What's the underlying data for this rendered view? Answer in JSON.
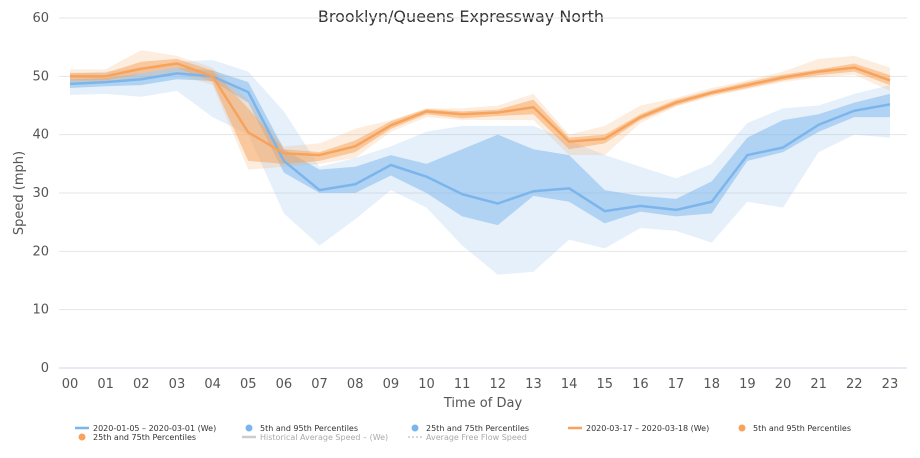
{
  "chart_data": {
    "type": "line",
    "title": "Brooklyn/Queens Expressway North",
    "xlabel": "Time of Day",
    "ylabel": "Speed (mph)",
    "ylim": [
      0,
      60
    ],
    "yticks": [
      0,
      10,
      20,
      30,
      40,
      50,
      60
    ],
    "categories": [
      "00",
      "01",
      "02",
      "03",
      "04",
      "05",
      "06",
      "07",
      "08",
      "09",
      "10",
      "11",
      "12",
      "13",
      "14",
      "15",
      "16",
      "17",
      "18",
      "19",
      "20",
      "21",
      "22",
      "23"
    ],
    "grid": true,
    "legend_position": "bottom",
    "series": [
      {
        "name": "2020-01-05 – 2020-03-01 (We)",
        "color": "#7cb5ec",
        "values": [
          48.7,
          49.0,
          49.5,
          50.5,
          50.0,
          47.3,
          35.5,
          30.5,
          31.5,
          34.8,
          32.8,
          29.8,
          28.2,
          30.3,
          30.8,
          26.9,
          27.8,
          27.1,
          28.5,
          36.5,
          37.8,
          41.7,
          44.1,
          45.2
        ],
        "p25": [
          48.0,
          48.3,
          48.5,
          49.5,
          49.2,
          45.5,
          33.5,
          30.0,
          30.0,
          33.0,
          30.0,
          26.0,
          24.5,
          29.5,
          28.5,
          24.8,
          26.8,
          26.0,
          26.5,
          35.5,
          37.0,
          40.5,
          43.0,
          43.0
        ],
        "p75": [
          49.5,
          49.7,
          50.5,
          51.5,
          51.0,
          49.0,
          37.5,
          34.0,
          34.5,
          36.5,
          35.0,
          37.5,
          40.0,
          37.5,
          36.5,
          30.5,
          29.5,
          29.0,
          32.0,
          39.5,
          42.5,
          43.5,
          45.5,
          47.0
        ],
        "p5": [
          46.8,
          47.0,
          46.5,
          47.5,
          43.0,
          40.0,
          26.5,
          21.0,
          25.5,
          30.5,
          27.5,
          21.0,
          16.0,
          16.5,
          22.0,
          20.5,
          24.0,
          23.5,
          21.5,
          28.5,
          27.5,
          37.0,
          40.0,
          39.5
        ],
        "p95": [
          50.5,
          50.8,
          51.5,
          52.5,
          52.8,
          50.8,
          44.0,
          34.5,
          36.0,
          38.0,
          40.5,
          41.5,
          41.5,
          41.5,
          39.0,
          36.5,
          34.5,
          32.5,
          35.0,
          42.0,
          44.5,
          45.0,
          47.0,
          48.5
        ]
      },
      {
        "name": "2020-03-17 – 2020-03-18 (We)",
        "color": "#f7a35c",
        "values": [
          50.0,
          50.0,
          51.3,
          52.2,
          50.0,
          40.4,
          36.8,
          36.5,
          38.0,
          41.6,
          44.0,
          43.5,
          43.8,
          44.7,
          38.8,
          39.3,
          43.0,
          45.5,
          47.2,
          48.5,
          49.8,
          50.8,
          51.5,
          49.3
        ],
        "p25": [
          49.3,
          49.3,
          50.5,
          51.5,
          49.0,
          35.5,
          35.0,
          35.5,
          37.0,
          41.0,
          43.5,
          42.8,
          43.2,
          43.5,
          37.5,
          38.5,
          42.5,
          45.0,
          46.8,
          48.0,
          49.3,
          50.2,
          50.8,
          48.5
        ],
        "p75": [
          50.6,
          50.6,
          52.5,
          53.0,
          51.0,
          44.5,
          37.5,
          37.0,
          39.0,
          42.3,
          44.4,
          44.0,
          44.3,
          46.0,
          39.5,
          40.0,
          43.5,
          46.0,
          47.6,
          49.0,
          50.3,
          51.2,
          52.2,
          50.2
        ],
        "p5": [
          48.8,
          48.8,
          49.5,
          50.5,
          48.5,
          34.0,
          34.5,
          35.0,
          36.0,
          40.5,
          43.0,
          42.5,
          42.5,
          42.5,
          36.5,
          36.5,
          42.0,
          44.8,
          46.5,
          47.8,
          49.0,
          49.8,
          50.3,
          47.5
        ],
        "p95": [
          51.2,
          51.2,
          54.5,
          53.5,
          51.5,
          46.0,
          38.0,
          38.5,
          41.0,
          42.5,
          44.5,
          44.5,
          45.0,
          47.0,
          40.0,
          41.5,
          45.0,
          46.3,
          48.0,
          49.3,
          50.8,
          53.0,
          53.5,
          51.5
        ]
      }
    ],
    "legend": [
      {
        "label": "2020-01-05 – 2020-03-01 (We)",
        "symbol": "line",
        "color": "#7cb5ec",
        "dim": false
      },
      {
        "label": "5th and 95th Percentiles",
        "symbol": "dot",
        "color": "#7cb5ec",
        "dim": false
      },
      {
        "label": "25th and 75th Percentiles",
        "symbol": "dot",
        "color": "#7cb5ec",
        "dim": false
      },
      {
        "label": "2020-03-17 – 2020-03-18 (We)",
        "symbol": "line",
        "color": "#f7a35c",
        "dim": false
      },
      {
        "label": "5th and 95th Percentiles",
        "symbol": "dot",
        "color": "#f7a35c",
        "dim": false
      },
      {
        "label": "25th and 75th Percentiles",
        "symbol": "dot",
        "color": "#f7a35c",
        "dim": false
      },
      {
        "label": "Historical Average Speed – (We)",
        "symbol": "line",
        "color": "#cccccc",
        "dim": true
      },
      {
        "label": "Average Free Flow Speed",
        "symbol": "dash",
        "color": "#cccccc",
        "dim": true
      }
    ]
  }
}
